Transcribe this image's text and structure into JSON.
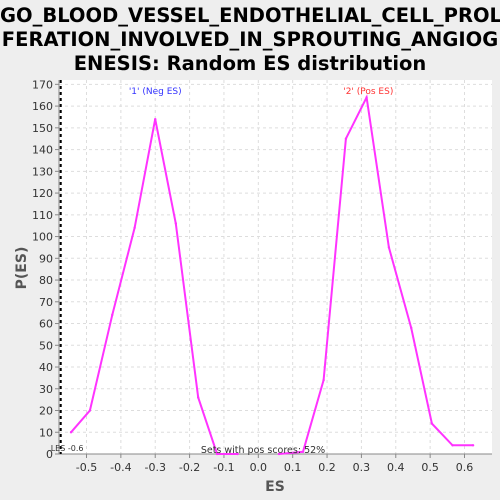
{
  "title": {
    "lines": [
      "GO_BLOOD_VESSEL_ENDOTHELIAL_CELL_PROLI",
      "FERATION_INVOLVED_IN_SPROUTING_ANGIOG",
      "ENESIS: Random ES distribution"
    ]
  },
  "chart_data": {
    "type": "line",
    "title": "GO_BLOOD_VESSEL_ENDOTHELIAL_CELL_PROLIFERATION_INVOLVED_IN_SPROUTING_ANGIOGENESIS: Random ES distribution",
    "xlabel": "ES",
    "ylabel": "P(ES)",
    "xlim": [
      -0.58,
      0.68
    ],
    "ylim": [
      0,
      172
    ],
    "xticks": [
      "-0.5",
      "-0.4",
      "-0.3",
      "-0.2",
      "-0.1",
      "0.0",
      "0.1",
      "0.2",
      "0.3",
      "0.4",
      "0.5",
      "0.6"
    ],
    "yticks": [
      "0",
      "10",
      "20",
      "30",
      "40",
      "50",
      "60",
      "70",
      "80",
      "90",
      "100",
      "110",
      "120",
      "130",
      "140",
      "150",
      "160",
      "170"
    ],
    "grid": true,
    "series": [
      {
        "name": "'1' (Neg ES)",
        "color": "#ff33ff",
        "x": [
          -0.545,
          -0.49,
          -0.425,
          -0.36,
          -0.3,
          -0.24,
          -0.175,
          -0.12,
          -0.06
        ],
        "y": [
          10,
          20,
          64,
          104,
          154,
          106,
          26,
          0,
          0
        ]
      },
      {
        "name": "'2' (Pos ES)",
        "color": "#ff33ff",
        "x": [
          0.06,
          0.13,
          0.19,
          0.255,
          0.315,
          0.38,
          0.445,
          0.505,
          0.565,
          0.625
        ],
        "y": [
          0,
          1,
          34,
          145,
          164,
          95,
          58,
          14,
          4,
          4
        ]
      }
    ],
    "series_labels": [
      {
        "text": "'1' (Neg ES)",
        "color": "#3333ff",
        "x": -0.3
      },
      {
        "text": "'2' (Pos ES)",
        "color": "#ff3333",
        "x": 0.32
      }
    ],
    "vline": {
      "x": -0.575,
      "label": "LES -0.6",
      "style": "dashed",
      "color": "#000000"
    },
    "annotation": "Sets with pos scores: 52%"
  }
}
